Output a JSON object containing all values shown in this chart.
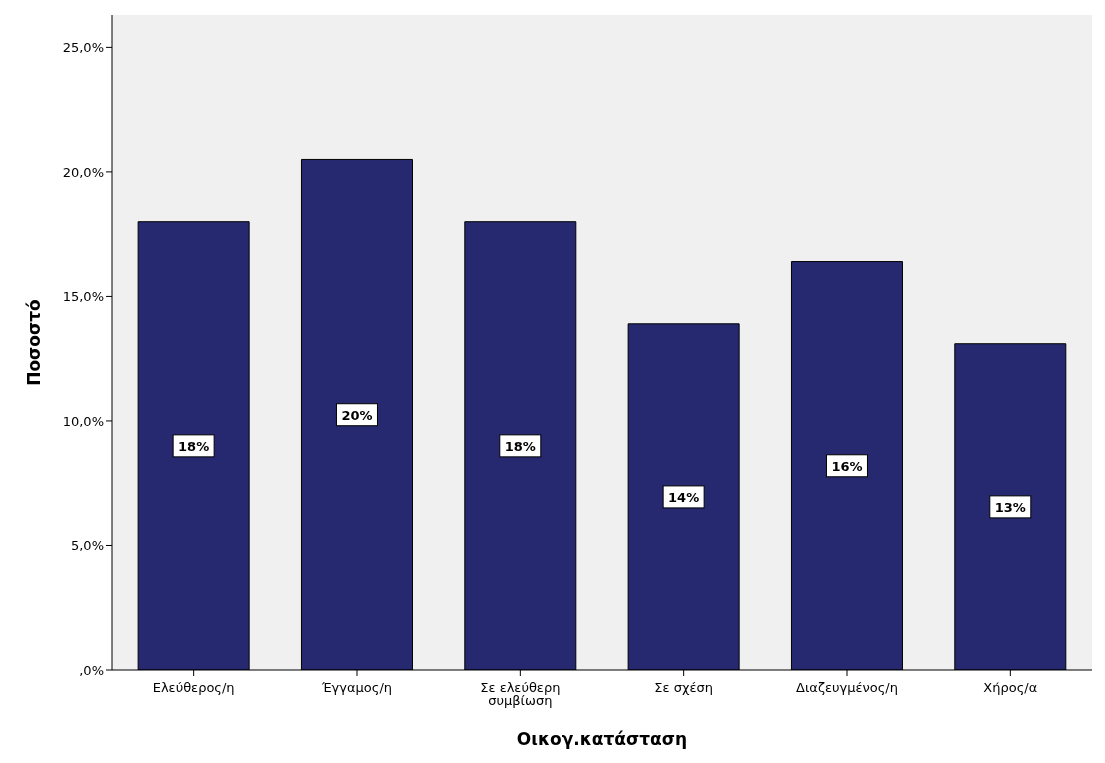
{
  "chart_data": {
    "type": "bar",
    "xlabel": "Οικογ.κατάσταση",
    "ylabel": "Ποσοστό",
    "categories": [
      "Ελεύθερος/η",
      "Έγγαμος/η",
      "Σε ελεύθερη συμβίωση",
      "Σε σχέση",
      "Διαζευγμένος/η",
      "Χήρος/α"
    ],
    "values": [
      18.0,
      20.5,
      18.0,
      13.9,
      16.4,
      13.1
    ],
    "value_labels": [
      "18%",
      "20%",
      "18%",
      "14%",
      "16%",
      "13%"
    ],
    "color": "#262970",
    "ylim": [
      0,
      26.3
    ],
    "yticks": [
      {
        "value": 0,
        "label": ",0%"
      },
      {
        "value": 5,
        "label": "5,0%"
      },
      {
        "value": 10,
        "label": "10,0%"
      },
      {
        "value": 15,
        "label": "15,0%"
      },
      {
        "value": 20,
        "label": "20,0%"
      },
      {
        "value": 25,
        "label": "25,0%"
      }
    ],
    "grid": false
  }
}
